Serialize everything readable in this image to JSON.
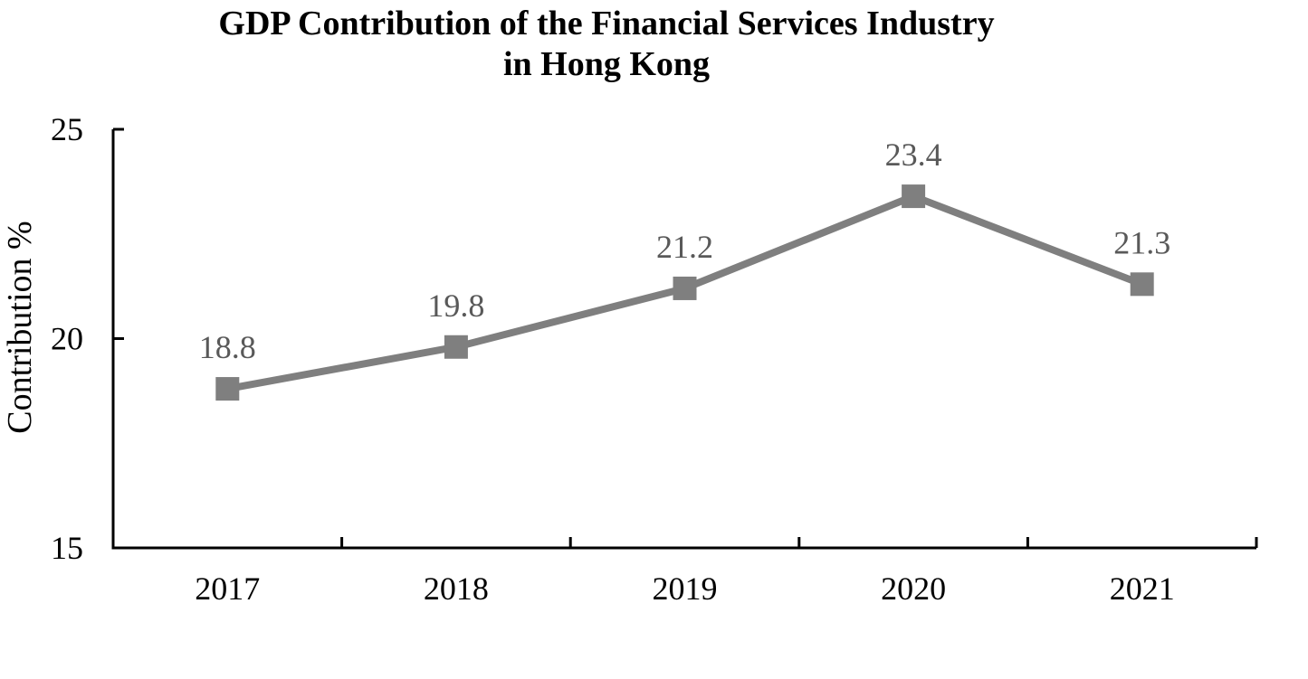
{
  "title": {
    "line1": "GDP Contribution of the Financial Services Industry",
    "line2": "in Hong Kong"
  },
  "chart_data": {
    "type": "line",
    "title": "GDP Contribution of the Financial Services Industry in Hong Kong",
    "categories": [
      "2017",
      "2018",
      "2019",
      "2020",
      "2021"
    ],
    "series": [
      {
        "name": "Contribution %",
        "values": [
          18.8,
          19.8,
          21.2,
          23.4,
          21.3
        ],
        "data_labels": [
          "18.8",
          "19.8",
          "21.2",
          "23.4",
          "21.3"
        ]
      }
    ],
    "xlabel": "",
    "ylabel": "Contribution %",
    "ylim": [
      15,
      25
    ],
    "yticks": [
      15,
      20,
      25
    ],
    "ytick_labels": [
      "15",
      "20",
      "25"
    ],
    "grid": false,
    "legend_position": "none",
    "marker": "square",
    "colors": {
      "line": "#7f7f7f",
      "marker": "#7f7f7f",
      "data_label": "#595959",
      "axis": "#000000",
      "tick_label": "#000000",
      "background": "#ffffff"
    }
  }
}
